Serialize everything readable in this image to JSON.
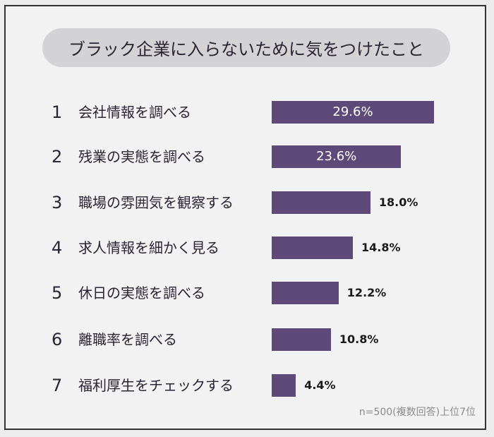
{
  "chart_data": {
    "type": "bar",
    "orientation": "horizontal",
    "title": "ブラック企業に入らないために気をつけたこと",
    "ranks": [
      "1",
      "2",
      "3",
      "4",
      "5",
      "6",
      "7"
    ],
    "categories": [
      "会社情報を調べる",
      "残業の実態を調べる",
      "職場の雰囲気を観察する",
      "求人情報を細かく見る",
      "休日の実態を調べる",
      "離職率を調べる",
      "福利厚生をチェックする"
    ],
    "values": [
      29.6,
      23.6,
      18.0,
      14.8,
      12.2,
      10.8,
      4.4
    ],
    "value_labels": [
      "29.6%",
      "23.6%",
      "18.0%",
      "14.8%",
      "12.2%",
      "10.8%",
      "4.4%"
    ],
    "unit": "%",
    "grid": false,
    "bar_color": "#5e4a78",
    "note": "n=500(複数回答)上位7位"
  }
}
